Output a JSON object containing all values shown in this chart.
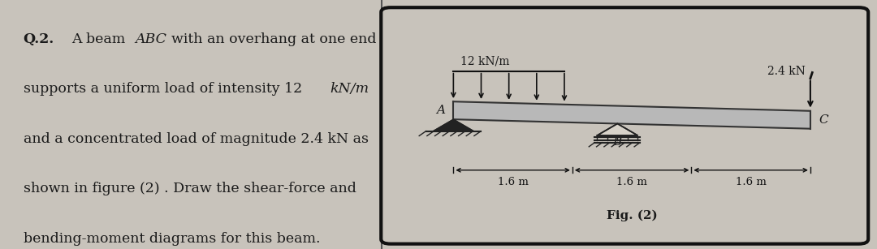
{
  "bg_color": "#c8c3bb",
  "left_bg": "#d8d3ca",
  "panel_bg": "#d8d3ca",
  "text_color": "#1a1a1a",
  "load_label": "12 kN/m",
  "conc_load_label": "2.4 kN",
  "fig_label": "Fig. (2)",
  "dim1": "1.6 m",
  "dim2": "1.6 m",
  "dim3": "1.6 m",
  "beam_fill": "#b8b8b8",
  "beam_edge": "#333333",
  "support_color": "#222222",
  "arrow_color": "#111111",
  "dim_color": "#111111",
  "panel_border": "#111111",
  "fontsize_text": 12.5,
  "fontsize_label": 10,
  "fontsize_dim": 9.5,
  "fontsize_fig": 11,
  "fontsize_point": 11
}
